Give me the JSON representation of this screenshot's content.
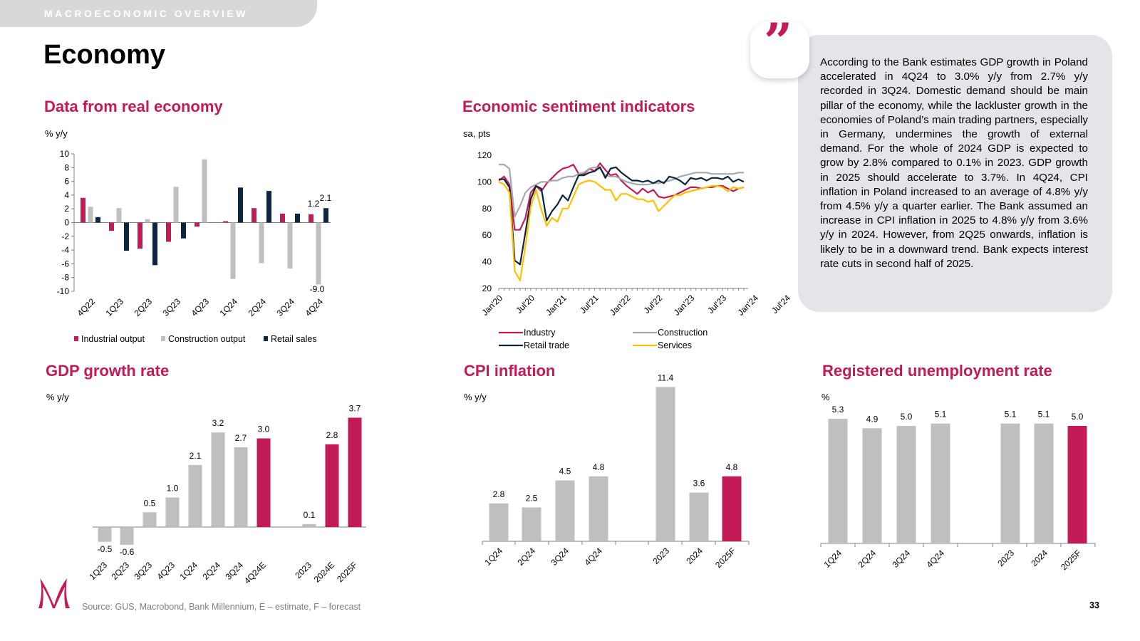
{
  "section": "MACROECONOMIC OVERVIEW",
  "page_title": "Economy",
  "quote_mark": "”",
  "commentary": "According to the Bank estimates GDP growth in Poland accelerated in 4Q24 to 3.0% y/y from 2.7% y/y recorded in 3Q24. Domestic demand should be main pillar of the economy, while the lackluster growth in the economies of Poland’s main trading partners, especially in Germany, undermines the growth of external demand. For the whole of 2024 GDP is expected to grow by 2.8% compared to 0.1% in 2023. GDP growth in 2025 should accelerate to 3.7%. In 4Q24, CPI inflation in Poland increased to an average of 4.8% y/y from 4.5% y/y a quarter earlier. The Bank assumed an increase in CPI inflation in 2025 to 4.8% y/y from 3.6% y/y in 2024. However, from 2Q25 onwards, inflation is likely to be in a downward trend. Bank expects interest rate cuts in second half of 2025.",
  "source": "Source: GUS, Macrobond, Bank Millennium, E – estimate, F – forecast",
  "page_number": "33",
  "colors": {
    "accent": "#c31a58",
    "grey": "#bfbfbf",
    "navy": "#0f243e",
    "light_grey": "#a6a9b0",
    "yellow": "#ffc000"
  },
  "chart_data": [
    {
      "id": "real",
      "type": "bar",
      "title": "Data from real economy",
      "ylabel": "% y/y",
      "ylim": [
        -10,
        10
      ],
      "yticks": [
        "10",
        "8",
        "6",
        "4",
        "2",
        "0",
        "-2",
        "-4",
        "-6",
        "-8",
        "-10"
      ],
      "categories": [
        "4Q22",
        "1Q23",
        "2Q23",
        "3Q23",
        "4Q23",
        "1Q24",
        "2Q24",
        "3Q24",
        "4Q24"
      ],
      "series": [
        {
          "name": "Industrial output",
          "color": "#c31a58",
          "values": [
            3.6,
            -1.2,
            -3.8,
            -2.8,
            -0.6,
            0.2,
            2.1,
            1.3,
            1.2
          ]
        },
        {
          "name": "Construction output",
          "color": "#bfbfbf",
          "values": [
            2.3,
            2.1,
            0.5,
            5.2,
            9.2,
            -8.2,
            -5.9,
            -6.7,
            -9.0
          ]
        },
        {
          "name": "Retail sales",
          "color": "#0f243e",
          "values": [
            0.8,
            -4.1,
            -6.2,
            -2.3,
            0.0,
            5.1,
            4.6,
            1.3,
            2.1
          ]
        }
      ],
      "data_labels": [
        "1.2",
        "2.1",
        "-9.0"
      ]
    },
    {
      "id": "sentiment",
      "type": "line",
      "title": "Economic sentiment indicators",
      "ylabel": "sa, pts",
      "ylim": [
        20,
        120
      ],
      "yticks": [
        "120",
        "100",
        "80",
        "60",
        "40",
        "20"
      ],
      "xticks": [
        "Jan'20",
        "Jul'20",
        "Jan'21",
        "Jul'21",
        "Jan'22",
        "Jul'22",
        "Jan'23",
        "Jul'23",
        "Jan'24",
        "Jul'24"
      ],
      "series": [
        {
          "name": "Industry",
          "color": "#c31a58",
          "values": [
            101,
            104,
            98,
            64,
            64,
            73,
            92,
            97,
            93,
            99,
            103,
            107,
            110,
            111,
            113,
            106,
            106,
            110,
            108,
            114,
            109,
            105,
            106,
            101,
            97,
            94,
            91,
            95,
            92,
            94,
            89,
            88,
            89,
            90,
            92,
            94,
            96,
            96,
            95,
            96,
            96,
            97,
            97,
            95,
            93,
            95,
            96
          ]
        },
        {
          "name": "Construction",
          "color": "#a6a9b0",
          "values": [
            113,
            113,
            110,
            74,
            82,
            92,
            96,
            98,
            100,
            100,
            101,
            101,
            103,
            104,
            104,
            106,
            107,
            110,
            111,
            110,
            105,
            104,
            104,
            102,
            100,
            99,
            98,
            98,
            98,
            99,
            99,
            100,
            101,
            102,
            104,
            105,
            106,
            107,
            107,
            107,
            106,
            106,
            106,
            106,
            106,
            107,
            107
          ]
        },
        {
          "name": "Retail trade",
          "color": "#0f243e",
          "values": [
            102,
            102,
            96,
            41,
            38,
            62,
            87,
            97,
            95,
            71,
            78,
            83,
            90,
            86,
            96,
            105,
            105,
            107,
            108,
            111,
            103,
            110,
            111,
            107,
            104,
            101,
            101,
            100,
            101,
            99,
            101,
            99,
            104,
            103,
            101,
            98,
            103,
            102,
            103,
            101,
            103,
            103,
            102,
            104,
            100,
            102,
            100
          ]
        },
        {
          "name": "Services",
          "color": "#ffc000",
          "values": [
            100,
            98,
            92,
            33,
            26,
            52,
            81,
            94,
            79,
            67,
            73,
            70,
            80,
            80,
            89,
            98,
            100,
            101,
            100,
            97,
            94,
            94,
            86,
            91,
            91,
            89,
            87,
            87,
            85,
            86,
            78,
            82,
            86,
            90,
            90,
            92,
            93,
            94,
            95,
            96,
            97,
            97,
            96,
            93,
            96,
            95,
            96
          ]
        }
      ]
    },
    {
      "id": "gdp",
      "type": "bar",
      "title": "GDP growth rate",
      "ylabel": "% y/y",
      "categories": [
        "1Q23",
        "2Q23",
        "3Q23",
        "4Q23",
        "1Q24",
        "2Q24",
        "3Q24",
        "4Q24E",
        "2023",
        "2024E",
        "2025F"
      ],
      "values": [
        -0.5,
        -0.6,
        0.5,
        1.0,
        2.1,
        3.2,
        2.7,
        3.0,
        0.1,
        2.8,
        3.7
      ],
      "labels": [
        "-0.5",
        "-0.6",
        "0.5",
        "1.0",
        "2.1",
        "3.2",
        "2.7",
        "3.0",
        "0.1",
        "2.8",
        "3.7"
      ],
      "highlight": [
        false,
        false,
        false,
        false,
        false,
        false,
        false,
        true,
        false,
        true,
        true
      ]
    },
    {
      "id": "cpi",
      "type": "bar",
      "title": "CPI inflation",
      "ylabel": "% y/y",
      "categories": [
        "1Q24",
        "2Q24",
        "3Q24",
        "4Q24",
        "2023",
        "2024",
        "2025F"
      ],
      "values": [
        2.8,
        2.5,
        4.5,
        4.8,
        11.4,
        3.6,
        4.8
      ],
      "labels": [
        "2.8",
        "2.5",
        "4.5",
        "4.8",
        "11.4",
        "3.6",
        "4.8"
      ],
      "highlight": [
        false,
        false,
        false,
        false,
        false,
        false,
        true
      ]
    },
    {
      "id": "unemp",
      "type": "bar",
      "title": "Registered unemployment rate",
      "ylabel": "%",
      "categories": [
        "1Q24",
        "2Q24",
        "3Q24",
        "4Q24",
        "2023",
        "2024",
        "2025F"
      ],
      "values": [
        5.3,
        4.9,
        5.0,
        5.1,
        5.1,
        5.1,
        5.0
      ],
      "labels": [
        "5.3",
        "4.9",
        "5.0",
        "5.1",
        "5.1",
        "5.1",
        "5.0"
      ],
      "highlight": [
        false,
        false,
        false,
        false,
        false,
        false,
        true
      ]
    }
  ]
}
